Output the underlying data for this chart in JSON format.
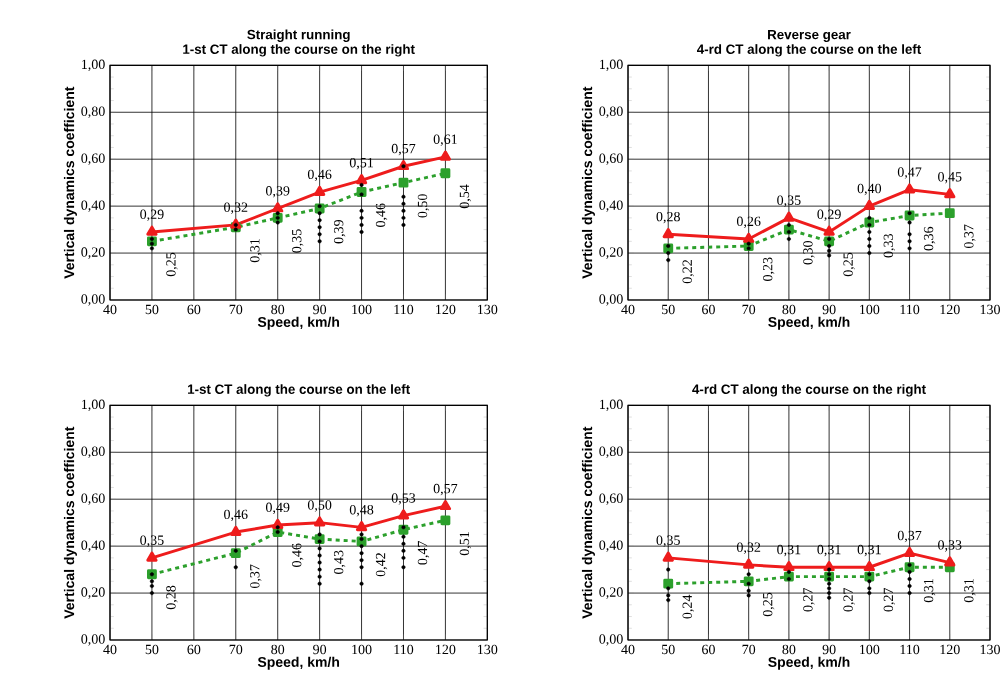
{
  "chart_data": [
    {
      "type": "line",
      "title": "Straight running",
      "subtitle": "1-st CT along the course on the right",
      "xlabel": "Speed, km/h",
      "ylabel": "Vertical dynamics coefficient",
      "x": [
        50,
        70,
        80,
        90,
        100,
        110,
        120
      ],
      "xlim": [
        40,
        130
      ],
      "xticks": [
        40,
        50,
        60,
        70,
        80,
        90,
        100,
        110,
        120,
        130
      ],
      "ylim": [
        0,
        1
      ],
      "yticks": [
        {
          "value": 0,
          "label": "0,00"
        },
        {
          "value": 0.2,
          "label": "0,20"
        },
        {
          "value": 0.4,
          "label": "0,40"
        },
        {
          "value": 0.6,
          "label": "0,60"
        },
        {
          "value": 0.8,
          "label": "0,80"
        },
        {
          "value": 1,
          "label": "1,00"
        }
      ],
      "grid": true,
      "series": [
        {
          "type": "scatter",
          "color": "#000000",
          "marker": "circle",
          "x": [
            50,
            50,
            50,
            70,
            70,
            80,
            80,
            80,
            90,
            90,
            90,
            90,
            90,
            90,
            100,
            100,
            100,
            100,
            100,
            100,
            110,
            110,
            110,
            110,
            110,
            110
          ],
          "values": [
            0.22,
            0.24,
            0.26,
            0.3,
            0.32,
            0.33,
            0.35,
            0.37,
            0.25,
            0.28,
            0.31,
            0.34,
            0.37,
            0.4,
            0.29,
            0.32,
            0.35,
            0.38,
            0.45,
            0.49,
            0.32,
            0.35,
            0.38,
            0.41,
            0.44,
            0.57
          ]
        },
        {
          "type": "line",
          "color": "#2ca02c",
          "marker": "square",
          "line_style": "dashed",
          "values": [
            0.25,
            0.31,
            0.35,
            0.39,
            0.46,
            0.5,
            0.54
          ],
          "value_labels": [
            "0,25",
            "0,31",
            "0,35",
            "0,39",
            "0,46",
            "0,50",
            "0,54"
          ]
        },
        {
          "type": "line",
          "color": "#ee1c1c",
          "marker": "triangle",
          "line_style": "solid",
          "values": [
            0.29,
            0.32,
            0.39,
            0.46,
            0.51,
            0.57,
            0.61
          ],
          "value_labels": [
            "0,29",
            "0,32",
            "0,39",
            "0,46",
            "0,51",
            "0,57",
            "0,61"
          ]
        }
      ]
    },
    {
      "type": "line",
      "title": "Reverse gear",
      "subtitle": "4-rd CT along the course on the left",
      "xlabel": "Speed, km/h",
      "ylabel": "Vertical dynamics coefficient",
      "x": [
        50,
        70,
        80,
        90,
        100,
        110,
        120
      ],
      "xlim": [
        40,
        130
      ],
      "xticks": [
        40,
        50,
        60,
        70,
        80,
        90,
        100,
        110,
        120,
        130
      ],
      "ylim": [
        0,
        1
      ],
      "yticks": [
        {
          "value": 0,
          "label": "0,00"
        },
        {
          "value": 0.2,
          "label": "0,20"
        },
        {
          "value": 0.4,
          "label": "0,40"
        },
        {
          "value": 0.6,
          "label": "0,60"
        },
        {
          "value": 0.8,
          "label": "0,80"
        },
        {
          "value": 1,
          "label": "1,00"
        }
      ],
      "grid": true,
      "series": [
        {
          "type": "scatter",
          "color": "#000000",
          "marker": "circle",
          "x": [
            50,
            50,
            50,
            70,
            70,
            80,
            80,
            80,
            90,
            90,
            90,
            90,
            100,
            100,
            100,
            100,
            100,
            100,
            110,
            110,
            110,
            110,
            110
          ],
          "values": [
            0.17,
            0.2,
            0.23,
            0.22,
            0.24,
            0.26,
            0.29,
            0.32,
            0.19,
            0.21,
            0.23,
            0.26,
            0.2,
            0.23,
            0.26,
            0.29,
            0.32,
            0.35,
            0.22,
            0.25,
            0.28,
            0.33,
            0.37
          ]
        },
        {
          "type": "line",
          "color": "#2ca02c",
          "marker": "square",
          "line_style": "dashed",
          "values": [
            0.22,
            0.23,
            0.3,
            0.25,
            0.33,
            0.36,
            0.37
          ],
          "value_labels": [
            "0,22",
            "0,23",
            "0,30",
            "0,25",
            "0,33",
            "0,36",
            "0,37"
          ]
        },
        {
          "type": "line",
          "color": "#ee1c1c",
          "marker": "triangle",
          "line_style": "solid",
          "values": [
            0.28,
            0.26,
            0.35,
            0.29,
            0.4,
            0.47,
            0.45
          ],
          "value_labels": [
            "0,28",
            "0,26",
            "0,35",
            "0,29",
            "0,40",
            "0,47",
            "0,45"
          ]
        }
      ]
    },
    {
      "type": "line",
      "title": "1-st CT along the course on the left",
      "xlabel": "Speed, km/h",
      "ylabel": "Vertical dynamics coefficient",
      "x": [
        50,
        70,
        80,
        90,
        100,
        110,
        120
      ],
      "xlim": [
        40,
        130
      ],
      "xticks": [
        40,
        50,
        60,
        70,
        80,
        90,
        100,
        110,
        120,
        130
      ],
      "ylim": [
        0,
        1
      ],
      "yticks": [
        {
          "value": 0,
          "label": "0,00"
        },
        {
          "value": 0.2,
          "label": "0,20"
        },
        {
          "value": 0.4,
          "label": "0,40"
        },
        {
          "value": 0.6,
          "label": "0,60"
        },
        {
          "value": 0.8,
          "label": "0,80"
        },
        {
          "value": 1,
          "label": "1,00"
        }
      ],
      "grid": true,
      "series": [
        {
          "type": "scatter",
          "color": "#000000",
          "marker": "circle",
          "x": [
            50,
            50,
            50,
            50,
            70,
            70,
            80,
            80,
            90,
            90,
            90,
            90,
            90,
            90,
            90,
            90,
            100,
            100,
            100,
            100,
            100,
            100,
            100,
            110,
            110,
            110,
            110,
            110,
            110
          ],
          "values": [
            0.2,
            0.23,
            0.25,
            0.28,
            0.31,
            0.38,
            0.46,
            0.48,
            0.24,
            0.27,
            0.3,
            0.33,
            0.36,
            0.39,
            0.42,
            0.45,
            0.24,
            0.31,
            0.34,
            0.37,
            0.4,
            0.43,
            0.45,
            0.31,
            0.35,
            0.38,
            0.41,
            0.44,
            0.48
          ]
        },
        {
          "type": "line",
          "color": "#2ca02c",
          "marker": "square",
          "line_style": "dashed",
          "values": [
            0.28,
            0.37,
            0.46,
            0.43,
            0.42,
            0.47,
            0.51
          ],
          "value_labels": [
            "0,28",
            "0,37",
            "0,46",
            "0,43",
            "0,42",
            "0,47",
            "0,51"
          ]
        },
        {
          "type": "line",
          "color": "#ee1c1c",
          "marker": "triangle",
          "line_style": "solid",
          "values": [
            0.35,
            0.46,
            0.49,
            0.5,
            0.48,
            0.53,
            0.57
          ],
          "value_labels": [
            "0,35",
            "0,46",
            "0,49",
            "0,50",
            "0,48",
            "0,53",
            "0,57"
          ]
        }
      ]
    },
    {
      "type": "line",
      "title": "4-rd CT along the course on the right",
      "xlabel": "Speed, km/h",
      "ylabel": "Vertical dynamics coefficient",
      "x": [
        50,
        70,
        80,
        90,
        100,
        110,
        120
      ],
      "xlim": [
        40,
        130
      ],
      "xticks": [
        40,
        50,
        60,
        70,
        80,
        90,
        100,
        110,
        120,
        130
      ],
      "ylim": [
        0,
        1
      ],
      "yticks": [
        {
          "value": 0,
          "label": "0,00"
        },
        {
          "value": 0.2,
          "label": "0,20"
        },
        {
          "value": 0.4,
          "label": "0,40"
        },
        {
          "value": 0.6,
          "label": "0,60"
        },
        {
          "value": 0.8,
          "label": "0,80"
        },
        {
          "value": 1,
          "label": "1,00"
        }
      ],
      "grid": true,
      "series": [
        {
          "type": "scatter",
          "color": "#000000",
          "marker": "circle",
          "x": [
            50,
            50,
            50,
            50,
            70,
            70,
            70,
            70,
            80,
            80,
            90,
            90,
            90,
            90,
            90,
            90,
            90,
            100,
            100,
            100,
            100,
            110,
            110,
            110,
            110,
            110
          ],
          "values": [
            0.17,
            0.19,
            0.22,
            0.3,
            0.19,
            0.21,
            0.24,
            0.28,
            0.26,
            0.29,
            0.18,
            0.2,
            0.22,
            0.24,
            0.26,
            0.28,
            0.3,
            0.2,
            0.22,
            0.25,
            0.28,
            0.2,
            0.23,
            0.26,
            0.29,
            0.32
          ]
        },
        {
          "type": "line",
          "color": "#2ca02c",
          "marker": "square",
          "line_style": "dashed",
          "values": [
            0.24,
            0.25,
            0.27,
            0.27,
            0.27,
            0.31,
            0.31
          ],
          "value_labels": [
            "0,24",
            "0,25",
            "0,27",
            "0,27",
            "0,27",
            "0,31",
            "0,31"
          ]
        },
        {
          "type": "line",
          "color": "#ee1c1c",
          "marker": "triangle",
          "line_style": "solid",
          "values": [
            0.35,
            0.32,
            0.31,
            0.31,
            0.31,
            0.37,
            0.33
          ],
          "value_labels": [
            "0,35",
            "0,32",
            "0,31",
            "0,31",
            "0,31",
            "0,37",
            "0,33"
          ]
        }
      ]
    }
  ]
}
